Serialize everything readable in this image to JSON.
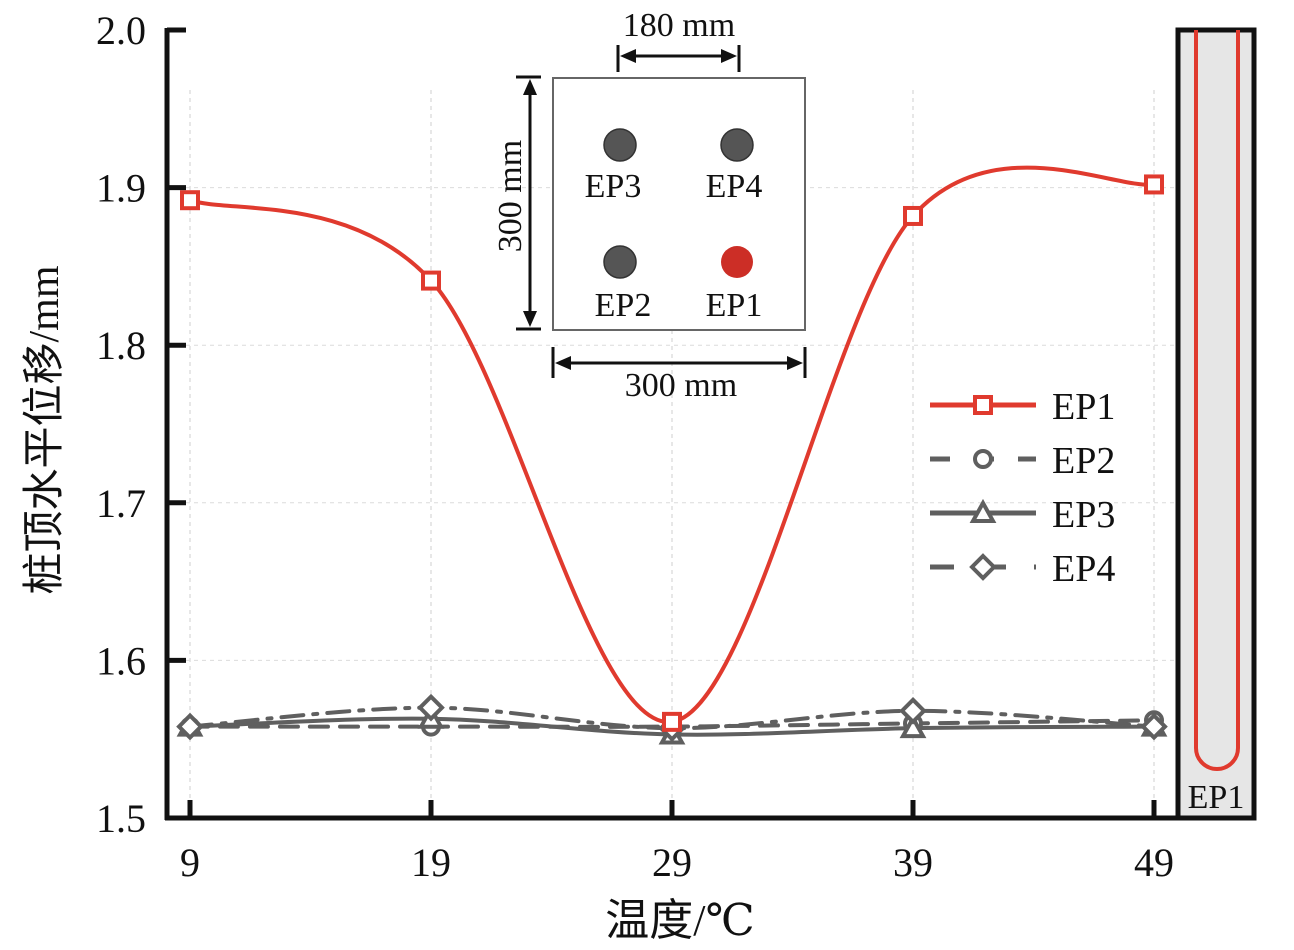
{
  "chart_data": {
    "type": "line",
    "title": "",
    "xlabel": "温度/℃",
    "ylabel": "桩顶水平位移/mm",
    "x": [
      9,
      19,
      29,
      39,
      49
    ],
    "x_tick_labels": [
      "9",
      "19",
      "29",
      "39",
      "49"
    ],
    "y_tick_labels": [
      "1.5",
      "1.6",
      "1.7",
      "1.8",
      "1.9",
      "2.0"
    ],
    "y_ticks": [
      1.5,
      1.6,
      1.7,
      1.8,
      1.9,
      2.0
    ],
    "ylim": [
      1.5,
      2.0
    ],
    "grid": "dashed-light",
    "legend_position": "right",
    "series": [
      {
        "name": "EP1",
        "marker": "square",
        "line": "solid",
        "color": "#e03a2e",
        "values": [
          1.892,
          1.841,
          1.561,
          1.882,
          1.902
        ]
      },
      {
        "name": "EP2",
        "marker": "circle",
        "line": "dashed",
        "color": "#5f5f5f",
        "values": [
          1.558,
          1.558,
          1.558,
          1.56,
          1.562
        ]
      },
      {
        "name": "EP3",
        "marker": "triangle",
        "line": "solid",
        "color": "#5f5f5f",
        "values": [
          1.558,
          1.563,
          1.553,
          1.557,
          1.558
        ]
      },
      {
        "name": "EP4",
        "marker": "diamond",
        "line": "dashdot",
        "color": "#5f5f5f",
        "values": [
          1.558,
          1.57,
          1.557,
          1.568,
          1.558
        ]
      }
    ],
    "inset": {
      "top_dimension": "180 mm",
      "side_dimension": "300 mm",
      "bottom_dimension": "300 mm",
      "piles": [
        {
          "label": "EP3",
          "color": "#555555"
        },
        {
          "label": "EP4",
          "color": "#555555"
        },
        {
          "label": "EP2",
          "color": "#555555"
        },
        {
          "label": "EP1",
          "color": "#cc2e26"
        }
      ]
    },
    "pile_diagram": {
      "label": "EP1",
      "fill": "#e6e6e6",
      "pipe_color": "#e03a2e"
    }
  }
}
